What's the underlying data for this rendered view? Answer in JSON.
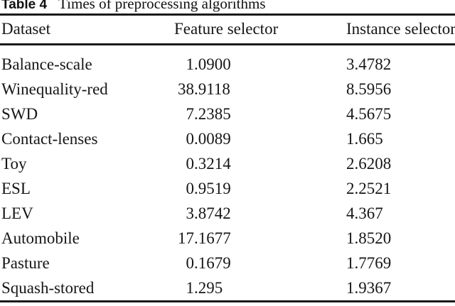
{
  "caption": {
    "label": "Table 4",
    "text": "Times of preprocessing algorithms"
  },
  "table": {
    "columns": [
      "Dataset",
      "Feature selector",
      "Instance selector"
    ],
    "rows": [
      {
        "name": "Balance-scale",
        "feature_selector": "1.0900",
        "instance_selector": "3.4782"
      },
      {
        "name": "Winequality-red",
        "feature_selector": "38.9118",
        "instance_selector": "8.5956"
      },
      {
        "name": "SWD",
        "feature_selector": "7.2385",
        "instance_selector": "4.5675"
      },
      {
        "name": "Contact-lenses",
        "feature_selector": "0.0089",
        "instance_selector": "1.665"
      },
      {
        "name": "Toy",
        "feature_selector": "0.3214",
        "instance_selector": "2.6208"
      },
      {
        "name": "ESL",
        "feature_selector": "0.9519",
        "instance_selector": "2.2521"
      },
      {
        "name": "LEV",
        "feature_selector": "3.8742",
        "instance_selector": "4.367"
      },
      {
        "name": "Automobile",
        "feature_selector": "17.1677",
        "instance_selector": "1.8520"
      },
      {
        "name": "Pasture",
        "feature_selector": "0.1679",
        "instance_selector": "1.7769"
      },
      {
        "name": "Squash-stored",
        "feature_selector": "1.295",
        "instance_selector": "1.9367"
      }
    ]
  },
  "colors": {
    "text": "#161616",
    "rule": "#1a1a1a",
    "background": "#ffffff"
  }
}
